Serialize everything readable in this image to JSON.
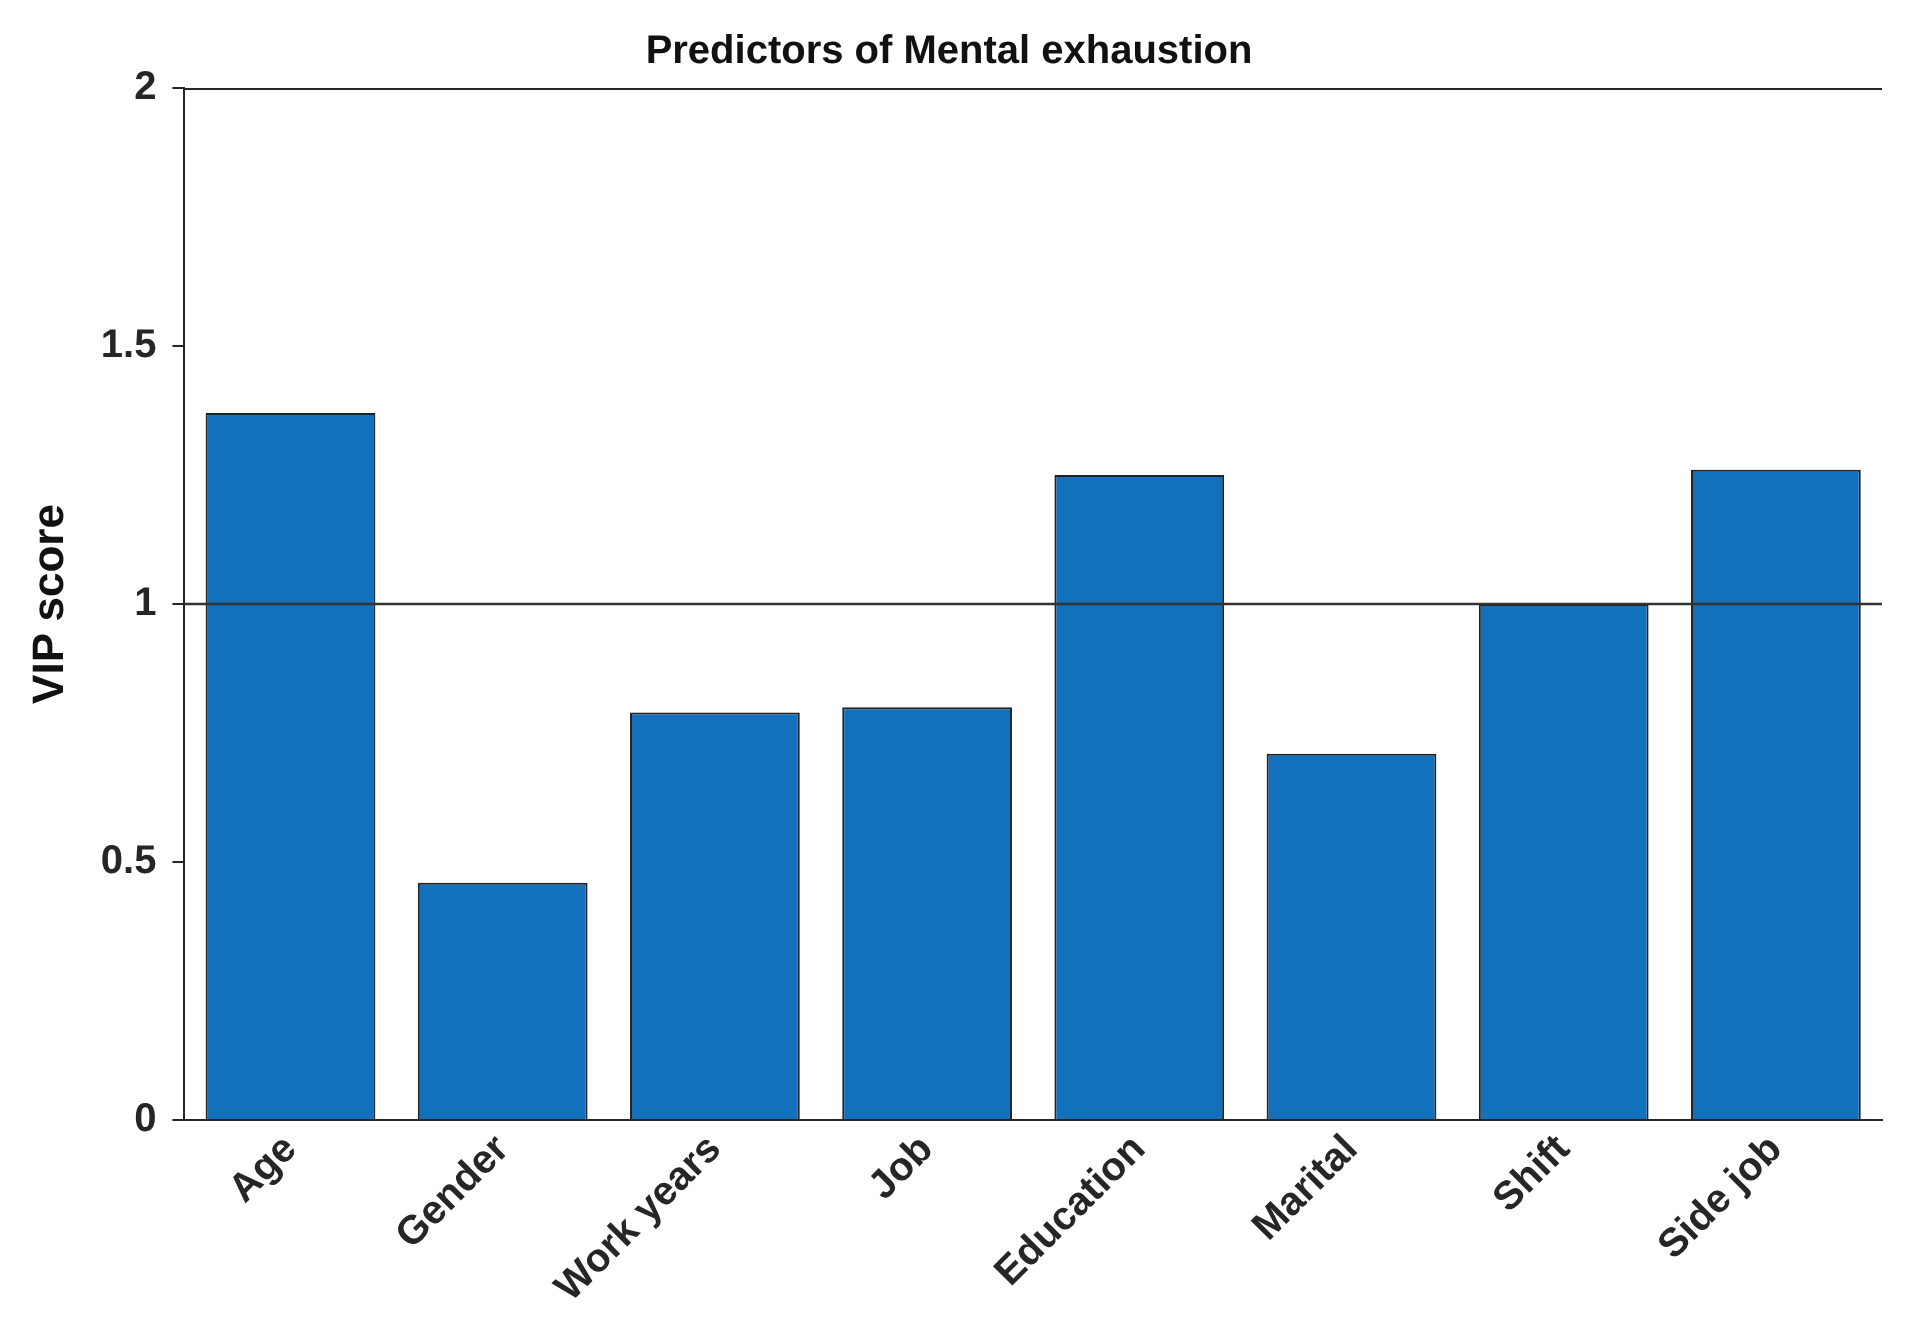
{
  "chart_data": {
    "type": "bar",
    "title": "Predictors of Mental exhaustion",
    "ylabel": "VIP score",
    "categories": [
      "Age",
      "Gender",
      "Work years",
      "Job",
      "Education",
      "Marital",
      "Shift",
      "Side job"
    ],
    "values": [
      1.37,
      0.46,
      0.79,
      0.8,
      1.25,
      0.71,
      1.0,
      1.26
    ],
    "color": "#1270bd",
    "ylim": [
      0,
      2
    ],
    "yticks": [
      0,
      0.5,
      1,
      1.5,
      2
    ],
    "ref_lines": [
      {
        "axis": "y",
        "value": 1,
        "color": "#333333"
      }
    ],
    "grid": false,
    "legend": false
  }
}
